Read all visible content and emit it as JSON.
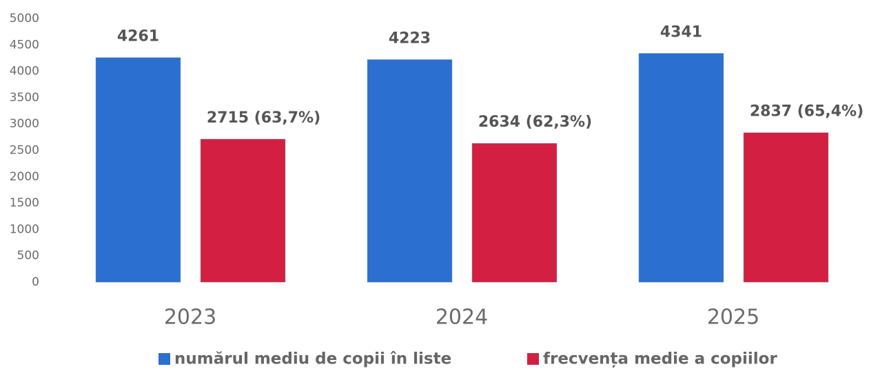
{
  "chart_data": {
    "type": "bar",
    "categories": [
      "2023",
      "2024",
      "2025"
    ],
    "series": [
      {
        "name": "numărul mediu de copii în liste",
        "color": "#2b6fd0",
        "values": [
          4261,
          4223,
          4341
        ]
      },
      {
        "name": "frecvența medie a copiilor",
        "color": "#d21f42",
        "values": [
          2715,
          2634,
          2837
        ],
        "value_labels": [
          "2715 (63,7%)",
          "2634 (62,3%)",
          "2837 (65,4%)"
        ]
      }
    ],
    "ylim": [
      0,
      5000
    ],
    "yticks": [
      0,
      500,
      1000,
      1500,
      2000,
      2500,
      3000,
      3500,
      4000,
      4500,
      5000
    ],
    "grid": false,
    "legend": "bottom"
  }
}
